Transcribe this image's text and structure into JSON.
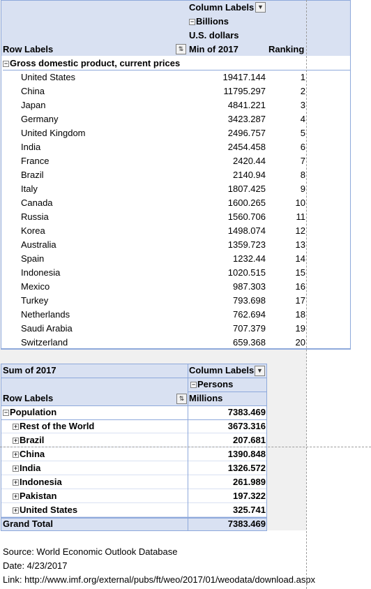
{
  "pivot1": {
    "column_labels": "Column Labels",
    "unit_group": "Billions",
    "unit_sub": "U.S. dollars",
    "row_labels": "Row Labels",
    "value_header": "Min of 2017",
    "rank_header": "Ranking",
    "group_label": "Gross domestic product, current prices",
    "rows": [
      {
        "country": "United States",
        "value": "19417.144",
        "rank": "1"
      },
      {
        "country": "China",
        "value": "11795.297",
        "rank": "2"
      },
      {
        "country": "Japan",
        "value": "4841.221",
        "rank": "3"
      },
      {
        "country": "Germany",
        "value": "3423.287",
        "rank": "4"
      },
      {
        "country": "United Kingdom",
        "value": "2496.757",
        "rank": "5"
      },
      {
        "country": "India",
        "value": "2454.458",
        "rank": "6"
      },
      {
        "country": "France",
        "value": "2420.44",
        "rank": "7"
      },
      {
        "country": "Brazil",
        "value": "2140.94",
        "rank": "8"
      },
      {
        "country": "Italy",
        "value": "1807.425",
        "rank": "9"
      },
      {
        "country": "Canada",
        "value": "1600.265",
        "rank": "10"
      },
      {
        "country": "Russia",
        "value": "1560.706",
        "rank": "11"
      },
      {
        "country": "Korea",
        "value": "1498.074",
        "rank": "12"
      },
      {
        "country": "Australia",
        "value": "1359.723",
        "rank": "13"
      },
      {
        "country": "Spain",
        "value": "1232.44",
        "rank": "14"
      },
      {
        "country": "Indonesia",
        "value": "1020.515",
        "rank": "15"
      },
      {
        "country": "Mexico",
        "value": "987.303",
        "rank": "16"
      },
      {
        "country": "Turkey",
        "value": "793.698",
        "rank": "17"
      },
      {
        "country": "Netherlands",
        "value": "762.694",
        "rank": "18"
      },
      {
        "country": "Saudi Arabia",
        "value": "707.379",
        "rank": "19"
      },
      {
        "country": "Switzerland",
        "value": "659.368",
        "rank": "20"
      }
    ]
  },
  "pivot2": {
    "sum_label": "Sum of 2017",
    "column_labels": "Column Labels",
    "unit_group": "Persons",
    "row_labels": "Row Labels",
    "value_header": "Millions",
    "group_label": "Population",
    "group_value": "7383.469",
    "rows": [
      {
        "label": "Rest of the World",
        "value": "3673.316"
      },
      {
        "label": "Brazil",
        "value": "207.681"
      },
      {
        "label": "China",
        "value": "1390.848"
      },
      {
        "label": "India",
        "value": "1326.572"
      },
      {
        "label": "Indonesia",
        "value": "261.989"
      },
      {
        "label": "Pakistan",
        "value": "197.322"
      },
      {
        "label": "United States",
        "value": "325.741"
      }
    ],
    "grand_total_label": "Grand Total",
    "grand_total_value": "7383.469"
  },
  "footer": {
    "source": "Source: World Economic Outlook Database",
    "date": "Date: 4/23/2017",
    "link": "Link: http://www.imf.org/external/pubs/ft/weo/2017/01/weodata/download.aspx"
  }
}
